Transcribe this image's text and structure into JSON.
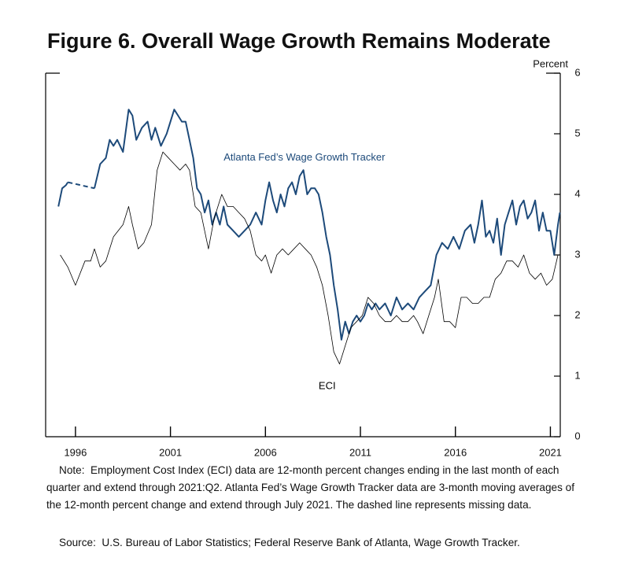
{
  "chart_data": {
    "type": "line",
    "title": "Figure 6. Overall Wage Growth Remains Moderate",
    "y_axis_label": "Percent",
    "xlim": [
      1994.43,
      2021.52
    ],
    "xticks": [
      1996,
      2001,
      2006,
      2011,
      2016,
      2021
    ],
    "ylim": [
      0,
      6
    ],
    "yticks": [
      0,
      1,
      2,
      3,
      4,
      5,
      6
    ],
    "dashed_gaps": true,
    "series": [
      {
        "name": "Atlanta Fed's Wage Growth Tracker",
        "color": "#1d4a7a",
        "width": 2,
        "x": [
          1995.1,
          1995.3,
          1995.5,
          1995.6,
          1996.3,
          1997.0,
          1997.3,
          1997.6,
          1997.8,
          1998.0,
          1998.2,
          1998.5,
          1998.8,
          1999.0,
          1999.2,
          1999.5,
          1999.8,
          2000.0,
          2000.2,
          2000.5,
          2000.8,
          2001.0,
          2001.2,
          2001.4,
          2001.6,
          2001.8,
          2002.0,
          2002.2,
          2002.4,
          2002.6,
          2002.8,
          2003.0,
          2003.2,
          2003.4,
          2003.6,
          2003.8,
          2004.0,
          2004.3,
          2004.6,
          2004.9,
          2005.2,
          2005.5,
          2005.8,
          2006.0,
          2006.2,
          2006.4,
          2006.6,
          2006.8,
          2007.0,
          2007.2,
          2007.4,
          2007.6,
          2007.8,
          2008.0,
          2008.2,
          2008.4,
          2008.6,
          2008.8,
          2009.0,
          2009.2,
          2009.4,
          2009.6,
          2009.8,
          2010.0,
          2010.2,
          2010.4,
          2010.6,
          2010.8,
          2011.0,
          2011.2,
          2011.4,
          2011.6,
          2011.8,
          2012.0,
          2012.3,
          2012.6,
          2012.9,
          2013.2,
          2013.5,
          2013.8,
          2014.1,
          2014.4,
          2014.7,
          2015.0,
          2015.3,
          2015.6,
          2015.9,
          2016.2,
          2016.5,
          2016.8,
          2017.0,
          2017.2,
          2017.4,
          2017.6,
          2017.8,
          2018.0,
          2018.2,
          2018.4,
          2018.6,
          2018.8,
          2019.0,
          2019.2,
          2019.4,
          2019.6,
          2019.8,
          2020.0,
          2020.2,
          2020.4,
          2020.6,
          2020.8,
          2021.0,
          2021.2,
          2021.4,
          2021.5
        ],
        "values": [
          3.8,
          4.1,
          4.15,
          4.2,
          null,
          4.1,
          4.5,
          4.6,
          4.9,
          4.8,
          4.9,
          4.7,
          5.4,
          5.3,
          4.9,
          5.1,
          5.2,
          4.9,
          5.1,
          4.8,
          5.0,
          5.2,
          5.4,
          5.3,
          5.2,
          5.2,
          4.9,
          4.6,
          4.1,
          4.0,
          3.7,
          3.9,
          3.5,
          3.7,
          3.5,
          3.8,
          3.5,
          3.4,
          3.3,
          3.4,
          3.5,
          3.7,
          3.5,
          3.9,
          4.2,
          3.9,
          3.7,
          4.0,
          3.8,
          4.1,
          4.2,
          4.0,
          4.3,
          4.4,
          4.0,
          4.1,
          4.1,
          4.0,
          3.7,
          3.3,
          3.0,
          2.5,
          2.1,
          1.6,
          1.9,
          1.7,
          1.9,
          2.0,
          1.9,
          2.0,
          2.2,
          2.1,
          2.2,
          2.1,
          2.2,
          2.0,
          2.3,
          2.1,
          2.2,
          2.1,
          2.3,
          2.4,
          2.5,
          3.0,
          3.2,
          3.1,
          3.3,
          3.1,
          3.4,
          3.5,
          3.2,
          3.5,
          3.9,
          3.3,
          3.4,
          3.2,
          3.6,
          3.0,
          3.5,
          3.7,
          3.9,
          3.5,
          3.8,
          3.9,
          3.6,
          3.7,
          3.9,
          3.4,
          3.7,
          3.4,
          3.4,
          3.0,
          3.5,
          3.7
        ]
      },
      {
        "name": "ECI",
        "color": "#000000",
        "width": 0.8,
        "x": [
          1995.2,
          1995.6,
          1996.0,
          1996.5,
          1996.8,
          1997.0,
          1997.3,
          1997.6,
          1998.0,
          1998.5,
          1998.8,
          1999.0,
          1999.3,
          1999.6,
          2000.0,
          2000.3,
          2000.6,
          2000.9,
          2001.2,
          2001.5,
          2001.8,
          2002.0,
          2002.3,
          2002.6,
          2003.0,
          2003.3,
          2003.7,
          2004.0,
          2004.3,
          2004.6,
          2004.9,
          2005.2,
          2005.5,
          2005.8,
          2006.0,
          2006.3,
          2006.6,
          2006.9,
          2007.2,
          2007.5,
          2007.8,
          2008.1,
          2008.4,
          2008.7,
          2009.0,
          2009.3,
          2009.6,
          2009.9,
          2010.2,
          2010.5,
          2010.8,
          2011.1,
          2011.4,
          2011.7,
          2012.0,
          2012.3,
          2012.6,
          2012.9,
          2013.2,
          2013.5,
          2013.8,
          2014.0,
          2014.3,
          2014.6,
          2014.9,
          2015.1,
          2015.4,
          2015.7,
          2016.0,
          2016.3,
          2016.6,
          2016.9,
          2017.2,
          2017.5,
          2017.8,
          2018.1,
          2018.4,
          2018.7,
          2019.0,
          2019.3,
          2019.6,
          2019.9,
          2020.2,
          2020.5,
          2020.8,
          2021.1,
          2021.4
        ],
        "values": [
          3.0,
          2.8,
          2.5,
          2.9,
          2.9,
          3.1,
          2.8,
          2.9,
          3.3,
          3.5,
          3.8,
          3.5,
          3.1,
          3.2,
          3.5,
          4.4,
          4.7,
          4.6,
          4.5,
          4.4,
          4.5,
          4.4,
          3.8,
          3.7,
          3.1,
          3.6,
          4.0,
          3.8,
          3.8,
          3.7,
          3.6,
          3.4,
          3.0,
          2.9,
          3.0,
          2.7,
          3.0,
          3.1,
          3.0,
          3.1,
          3.2,
          3.1,
          3.0,
          2.8,
          2.5,
          2.0,
          1.4,
          1.2,
          1.5,
          1.8,
          1.9,
          2.0,
          2.3,
          2.2,
          2.0,
          1.9,
          1.9,
          2.0,
          1.9,
          1.9,
          2.0,
          1.9,
          1.7,
          2.0,
          2.3,
          2.6,
          1.9,
          1.9,
          1.8,
          2.3,
          2.3,
          2.2,
          2.2,
          2.3,
          2.3,
          2.6,
          2.7,
          2.9,
          2.9,
          2.8,
          3.0,
          2.7,
          2.6,
          2.7,
          2.5,
          2.6,
          3.0
        ]
      }
    ],
    "annotations": [
      {
        "text": "Atlanta Fed’s Wage Growth Tracker",
        "x": 2003.8,
        "y": 4.6,
        "color": "#1d4a7a"
      },
      {
        "text": "ECI",
        "x": 2008.8,
        "y": 0.83,
        "color": "#000000"
      }
    ],
    "note": "Note:  Employment Cost Index (ECI) data are 12-month percent changes ending in the last month of each quarter and extend through 2021:Q2. Atlanta Fed’s Wage Growth Tracker data are 3-month moving averages of the 12-month percent change and extend through July 2021. The dashed line represents missing data.",
    "source": "Source:  U.S. Bureau of Labor Statistics; Federal Reserve Bank of Atlanta, Wage Growth Tracker."
  }
}
